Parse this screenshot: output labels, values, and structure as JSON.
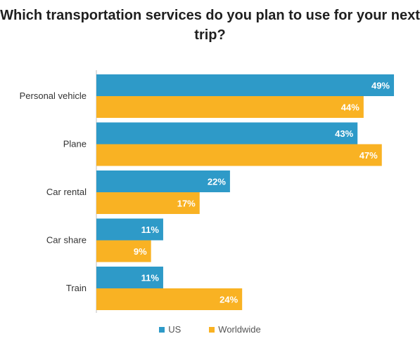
{
  "chart_data": {
    "type": "bar",
    "orientation": "horizontal",
    "title": "Which transportation services do you plan to use for your next trip?",
    "categories": [
      "Personal vehicle",
      "Plane",
      "Car rental",
      "Car share",
      "Train"
    ],
    "series": [
      {
        "name": "US",
        "color": "#2e9ac8",
        "values": [
          49,
          43,
          22,
          11,
          11
        ],
        "labels": [
          "49%",
          "43%",
          "22%",
          "11%",
          "11%"
        ]
      },
      {
        "name": "Worldwide",
        "color": "#f9b223",
        "values": [
          44,
          47,
          17,
          9,
          24
        ],
        "labels": [
          "44%",
          "47%",
          "17%",
          "9%",
          "24%"
        ]
      }
    ],
    "xlim": [
      0,
      50
    ],
    "grid": false,
    "legend_position": "bottom"
  }
}
